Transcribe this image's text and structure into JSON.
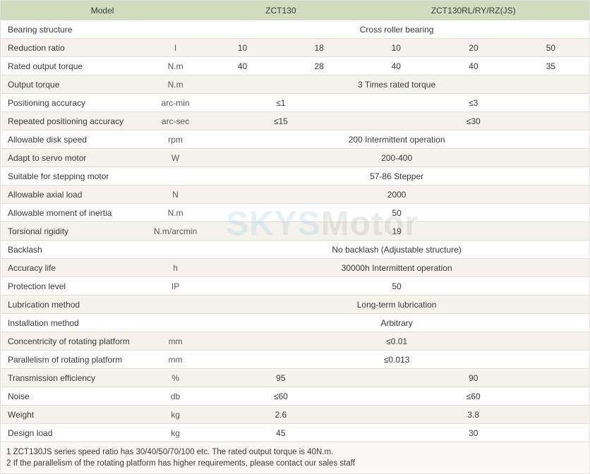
{
  "header": {
    "model": "Model",
    "col1": "ZCT130",
    "col2": "ZCT130RL/RY/RZ(JS)"
  },
  "rows": [
    {
      "label": "Bearing structure",
      "unit": "",
      "span": "full",
      "v": "Cross roller bearing"
    },
    {
      "label": "Reduction ratio",
      "unit": "I",
      "span": "5",
      "v": [
        "10",
        "18",
        "10",
        "20",
        "50"
      ]
    },
    {
      "label": "Rated output torque",
      "unit": "N.m",
      "span": "5",
      "v": [
        "40",
        "28",
        "40",
        "40",
        "35"
      ]
    },
    {
      "label": "Output torque",
      "unit": "N.m",
      "span": "full",
      "v": "3 Times rated torque"
    },
    {
      "label": "Positioning accuracy",
      "unit": "arc-min",
      "span": "2",
      "v": [
        "≤1",
        "≤3"
      ]
    },
    {
      "label": "Repeated positioning accuracy",
      "unit": "arc-sec",
      "span": "2",
      "v": [
        "≤15",
        "≤30"
      ]
    },
    {
      "label": "Allowable disk speed",
      "unit": "rpm",
      "span": "full",
      "v": "200 Intermittent operation"
    },
    {
      "label": "Adapt to servo motor",
      "unit": "W",
      "span": "full",
      "v": "200-400"
    },
    {
      "label": "Suitable for stepping motor",
      "unit": "",
      "span": "full",
      "v": "57-86 Stepper"
    },
    {
      "label": "Allowable axial load",
      "unit": "N",
      "span": "full",
      "v": "2000"
    },
    {
      "label": "Allowable moment of inertia",
      "unit": "N.m",
      "span": "full",
      "v": "50"
    },
    {
      "label": "Torsional rigidity",
      "unit": "N.m/arcmin",
      "span": "full",
      "v": "19"
    },
    {
      "label": "Backlash",
      "unit": "",
      "span": "full",
      "v": "No backlash (Adjustable structure)"
    },
    {
      "label": "Accuracy life",
      "unit": "h",
      "span": "full",
      "v": "30000h Intermittent operation"
    },
    {
      "label": "Protection level",
      "unit": "IP",
      "span": "full",
      "v": "50"
    },
    {
      "label": "Lubrication method",
      "unit": "",
      "span": "full",
      "v": "Long-term lubrication"
    },
    {
      "label": "Installation method",
      "unit": "",
      "span": "full",
      "v": "Arbitrary"
    },
    {
      "label": "Concentricity of rotating platform",
      "unit": "mm",
      "span": "full",
      "v": "≤0.01"
    },
    {
      "label": "Parallelism of rotating platform",
      "unit": "mm",
      "span": "full",
      "v": "≤0.013"
    },
    {
      "label": "Transmission efficiency",
      "unit": "%",
      "span": "2",
      "v": [
        "95",
        "90"
      ]
    },
    {
      "label": "Noise",
      "unit": "db",
      "span": "2",
      "v": [
        "≤60",
        "≤60"
      ]
    },
    {
      "label": "Weight",
      "unit": "kg",
      "span": "2",
      "v": [
        "2.6",
        "3.8"
      ]
    },
    {
      "label": "Design load",
      "unit": "kg",
      "span": "2",
      "v": [
        "45",
        "30"
      ]
    }
  ],
  "notes": [
    "1 ZCT130JS series speed ratio has 30/40/50/70/100 etc. The rated output torque is 40N.m.",
    "2 If the parallelism of the rotating platform has higher requirements, please contact our sales staff"
  ],
  "colwidths": {
    "c2": 109,
    "c5_each": 109
  },
  "watermark": {
    "t1": "SKYS",
    "t2": "Motor"
  }
}
